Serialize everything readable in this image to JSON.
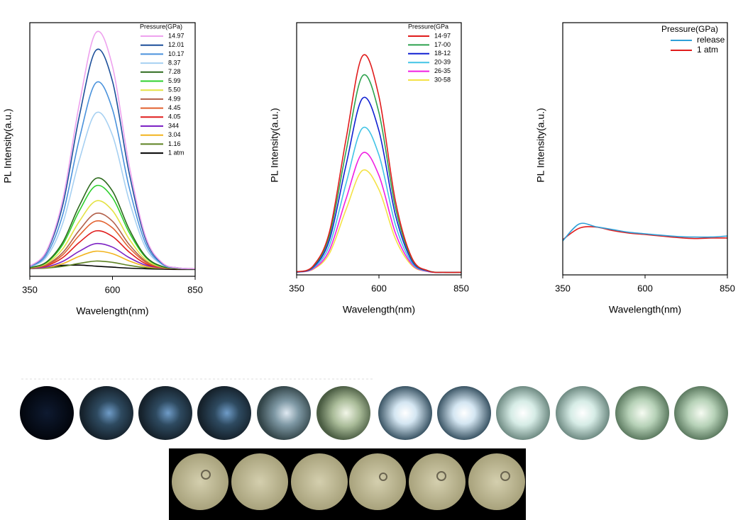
{
  "chart_data": [
    {
      "type": "line",
      "xlabel": "Wavelength(nm)",
      "ylabel": "PL Intensity(a.u.)",
      "legend_title": "Pressure(GPa)",
      "legend": "upper right",
      "x": [
        350,
        400,
        450,
        500,
        550,
        600,
        650,
        700,
        750,
        800,
        850
      ],
      "xlim": [
        350,
        850
      ],
      "xticks": [
        350,
        600,
        850
      ],
      "ylim": [
        0,
        100
      ],
      "series": [
        {
          "name": "14.97",
          "color": "#eea2ee",
          "values": [
            4.0,
            9.9,
            30.4,
            68.1,
            96.1,
            82.8,
            44.1,
            15.7,
            5.4,
            3.3,
            3
          ]
        },
        {
          "name": "12.01",
          "color": "#1c4f9a",
          "values": [
            4.0,
            9.4,
            28.3,
            63.3,
            89.1,
            76.9,
            41.0,
            14.7,
            5.2,
            3.3,
            3
          ]
        },
        {
          "name": "10.17",
          "color": "#4a92dc",
          "values": [
            3.8,
            8.4,
            24.5,
            54.3,
            76.3,
            65.8,
            35.3,
            13.0,
            4.9,
            3.2,
            3
          ]
        },
        {
          "name": "8.37",
          "color": "#a6d0f2",
          "values": [
            3.7,
            7.5,
            21.0,
            46.0,
            64.4,
            55.6,
            30.1,
            11.4,
            4.6,
            3.2,
            3
          ]
        },
        {
          "name": "7.28",
          "color": "#2d6a1d",
          "values": [
            3.4,
            5.6,
            13.5,
            27.9,
            38.6,
            33.6,
            18.7,
            7.9,
            3.9,
            3.1,
            3
          ]
        },
        {
          "name": "5.99",
          "color": "#2ed02e",
          "values": [
            3.4,
            5.4,
            12.6,
            25.9,
            35.7,
            31.0,
            17.4,
            7.5,
            3.8,
            3.1,
            3
          ]
        },
        {
          "name": "5.50",
          "color": "#e4e244",
          "values": [
            3.3,
            5.0,
            10.9,
            21.7,
            29.7,
            25.9,
            14.8,
            6.6,
            3.7,
            3.1,
            3
          ]
        },
        {
          "name": "4.99",
          "color": "#b2604a",
          "values": [
            3.2,
            4.6,
            9.4,
            18.2,
            24.8,
            21.7,
            12.6,
            6.0,
            3.6,
            3.1,
            3
          ]
        },
        {
          "name": "4.45",
          "color": "#e2602e",
          "values": [
            3.2,
            4.4,
            8.5,
            16.2,
            21.8,
            19.1,
            11.3,
            5.6,
            3.5,
            3.1,
            3
          ]
        },
        {
          "name": "4.05",
          "color": "#e01c1c",
          "values": [
            3.2,
            4.1,
            7.4,
            13.4,
            17.9,
            15.7,
            9.6,
            5.0,
            3.4,
            3.0,
            3
          ]
        },
        {
          "name": "344",
          "color": "#7c22c4",
          "values": [
            3.1,
            3.7,
            5.9,
            9.9,
            12.9,
            11.5,
            7.4,
            4.4,
            3.3,
            3.0,
            3
          ]
        },
        {
          "name": "3.04",
          "color": "#f2b41e",
          "values": [
            3.1,
            3.5,
            5.0,
            7.9,
            9.9,
            8.9,
            6.1,
            3.9,
            3.2,
            3.0,
            3
          ]
        },
        {
          "name": "1.16",
          "color": "#5e8222",
          "values": [
            3.0,
            3.2,
            3.9,
            5.1,
            6.0,
            5.5,
            4.3,
            3.4,
            3.1,
            3.0,
            3
          ]
        },
        {
          "name": "1 atm",
          "color": "#000000",
          "values": [
            3.0,
            3.6,
            4.3,
            4.4,
            4.0,
            3.6,
            3.2,
            3.0,
            2.8,
            2.7,
            2.7
          ]
        }
      ]
    },
    {
      "type": "line",
      "xlabel": "Wavelength(nm)",
      "ylabel": "PL Intensity(a.u.)",
      "legend_title": "Pressure(GPa",
      "legend": "upper right",
      "x": [
        350,
        400,
        450,
        500,
        550,
        600,
        650,
        700,
        750,
        800,
        850
      ],
      "xlim": [
        350,
        850
      ],
      "xticks": [
        350,
        600,
        850
      ],
      "ylim": [
        0,
        100
      ],
      "series": [
        {
          "name": "14-97",
          "color": "#e01c1c",
          "values": [
            1.2,
            3.5,
            17.2,
            53.8,
            86.8,
            70.7,
            29.3,
            6.7,
            1.6,
            1,
            1
          ]
        },
        {
          "name": "17-00",
          "color": "#2ea24e",
          "values": [
            1.2,
            3.3,
            15.7,
            49.0,
            78.9,
            64.3,
            26.7,
            6.2,
            1.6,
            1,
            1
          ]
        },
        {
          "name": "18-12",
          "color": "#1020d2",
          "values": [
            1.1,
            3.0,
            14.0,
            43.5,
            70.0,
            57.1,
            23.8,
            5.6,
            1.5,
            1,
            1
          ]
        },
        {
          "name": "20-39",
          "color": "#42c4e6",
          "values": [
            1.1,
            2.7,
            11.8,
            36.2,
            58.2,
            47.5,
            19.9,
            4.8,
            1.4,
            1,
            1
          ]
        },
        {
          "name": "26-35",
          "color": "#f01ee2",
          "values": [
            1.1,
            2.4,
            9.9,
            30.1,
            48.3,
            39.4,
            16.6,
            4.2,
            1.3,
            1,
            1
          ]
        },
        {
          "name": "30-58",
          "color": "#f4e246",
          "values": [
            1.1,
            2.2,
            8.6,
            25.9,
            41.4,
            33.8,
            14.3,
            3.7,
            1.3,
            1,
            1
          ]
        }
      ]
    },
    {
      "type": "line",
      "xlabel": "Wavelength(nm)",
      "ylabel": "PL Intensity(a.u.)",
      "legend_title": "Pressure(GPa)",
      "legend": "upper right",
      "x": [
        350,
        400,
        450,
        500,
        550,
        600,
        650,
        700,
        750,
        800,
        850
      ],
      "xlim": [
        350,
        850
      ],
      "xticks": [
        350,
        600,
        850
      ],
      "ylim": [
        0,
        100
      ],
      "series": [
        {
          "name": "release",
          "color": "#2fa0d8",
          "values": [
            13.5,
            20.2,
            19.1,
            18.0,
            16.9,
            16.3,
            15.7,
            15.2,
            15.0,
            15.0,
            15.4
          ]
        },
        {
          "name": "1 atm",
          "color": "#e01c1c",
          "values": [
            14.0,
            18.5,
            19.0,
            17.6,
            16.6,
            16.0,
            15.4,
            14.8,
            14.4,
            14.6,
            14.6
          ]
        }
      ]
    }
  ]
}
